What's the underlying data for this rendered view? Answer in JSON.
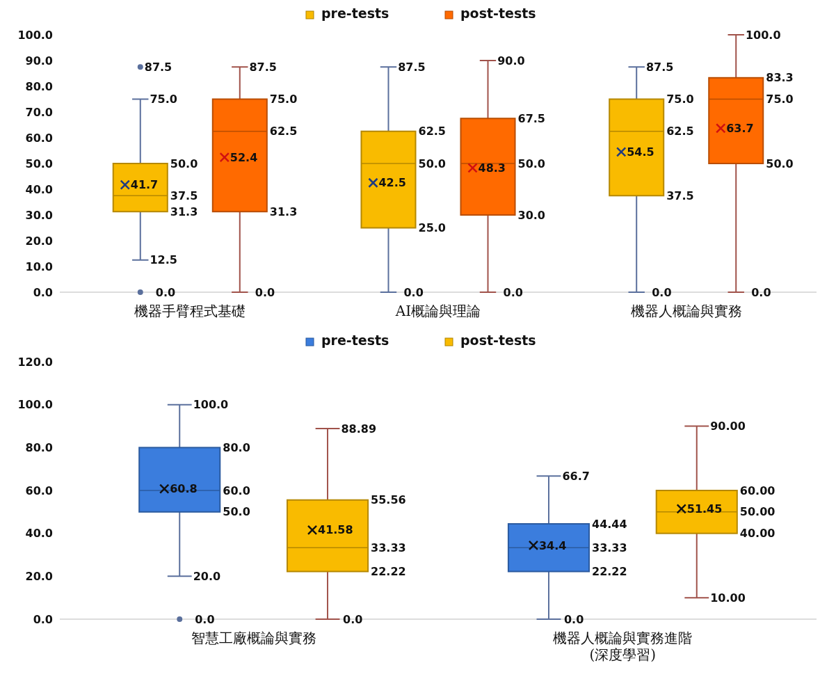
{
  "chart_data": [
    {
      "type": "box",
      "categories": [
        "機器手臂程式基礎",
        "AI概論與理論",
        "機器人概論與實務"
      ],
      "ylim": [
        0,
        100
      ],
      "yticks": [
        {
          "value": 0,
          "label": "0.0"
        },
        {
          "value": 10,
          "label": "10.0"
        },
        {
          "value": 20,
          "label": "20.0"
        },
        {
          "value": 30,
          "label": "30.0"
        },
        {
          "value": 40,
          "label": "40.0"
        },
        {
          "value": 50,
          "label": "50.0"
        },
        {
          "value": 60,
          "label": "60.0"
        },
        {
          "value": 70,
          "label": "70.0"
        },
        {
          "value": 80,
          "label": "80.0"
        },
        {
          "value": 90,
          "label": "90.0"
        },
        {
          "value": 100,
          "label": "100.0"
        }
      ],
      "legend": "top",
      "marker": "cross",
      "grid": false,
      "series": [
        {
          "name": "pre-tests",
          "color": "#f9bb00",
          "boxes": [
            {
              "low": 12.5,
              "q1": 31.3,
              "median": 37.5,
              "q3": 50,
              "high": 75,
              "mean": 41.7,
              "outliers": [
                87.5,
                0
              ]
            },
            {
              "low": 0,
              "q1": 25,
              "median": 50,
              "q3": 62.5,
              "high": 87.5,
              "mean": 42.5
            },
            {
              "low": 0,
              "q1": 37.5,
              "median": 62.5,
              "q3": 75,
              "high": 87.5,
              "mean": 54.5
            }
          ],
          "value_labels": [
            {
              "low": "12.5",
              "q1": "31.3",
              "median": "37.5",
              "q3": "50.0",
              "high": "75.0",
              "mean": "41.7",
              "outliers": [
                "87.5",
                "0.0"
              ]
            },
            {
              "low": "0.0",
              "q1": "25.0",
              "median": "50.0",
              "q3": "62.5",
              "high": "87.5",
              "mean": "42.5"
            },
            {
              "low": "0.0",
              "q1": "37.5",
              "median": "62.5",
              "q3": "75.0",
              "high": "87.5",
              "mean": "54.5"
            }
          ]
        },
        {
          "name": "post-tests",
          "color": "#ff6a00",
          "boxes": [
            {
              "low": 0,
              "q1": 31.3,
              "median": 62.5,
              "q3": 75,
              "high": 87.5,
              "mean": 52.4
            },
            {
              "low": 0,
              "q1": 30,
              "median": 50,
              "q3": 67.5,
              "high": 90,
              "mean": 48.3
            },
            {
              "low": 0,
              "q1": 50,
              "median": 75,
              "q3": 83.3,
              "high": 100,
              "mean": 63.7
            }
          ],
          "value_labels": [
            {
              "low": "0.0",
              "q1": "31.3",
              "median": "62.5",
              "q3": "75.0",
              "high": "87.5",
              "mean": "52.4"
            },
            {
              "low": "0.0",
              "q1": "30.0",
              "median": "50.0",
              "q3": "67.5",
              "high": "90.0",
              "mean": "48.3"
            },
            {
              "low": "0.0",
              "q1": "50.0",
              "median": "75.0",
              "q3": "83.3",
              "high": "100.0",
              "mean": "63.7"
            }
          ]
        }
      ]
    },
    {
      "type": "box",
      "categories": [
        "智慧工廠概論與實務",
        "機器人概論與實務進階\n(深度學習)"
      ],
      "ylim": [
        0,
        120
      ],
      "yticks": [
        {
          "value": 0,
          "label": "0.0"
        },
        {
          "value": 20,
          "label": "20.0"
        },
        {
          "value": 40,
          "label": "40.0"
        },
        {
          "value": 60,
          "label": "60.0"
        },
        {
          "value": 80,
          "label": "80.0"
        },
        {
          "value": 100,
          "label": "100.0"
        },
        {
          "value": 120,
          "label": "120.0"
        }
      ],
      "legend": "top",
      "marker": "cross",
      "grid": false,
      "series": [
        {
          "name": "pre-tests",
          "color": "#3b7ddd",
          "boxes": [
            {
              "low": 20,
              "q1": 50,
              "median": 60,
              "q3": 80,
              "high": 100,
              "mean": 60.8,
              "outliers": [
                0
              ]
            },
            {
              "low": 0,
              "q1": 22.22,
              "median": 33.33,
              "q3": 44.44,
              "high": 66.7,
              "mean": 34.4
            }
          ],
          "value_labels": [
            {
              "low": "20.0",
              "q1": "50.0",
              "median": "60.0",
              "q3": "80.0",
              "high": "100.0",
              "mean": "60.8",
              "outliers": [
                "0.0"
              ]
            },
            {
              "low": "0.0",
              "q1": "22.22",
              "median": "33.33",
              "q3": "44.44",
              "high": "66.7",
              "mean": "34.4"
            }
          ]
        },
        {
          "name": "post-tests",
          "color": "#f9bb00",
          "boxes": [
            {
              "low": 0,
              "q1": 22.22,
              "median": 33.33,
              "q3": 55.56,
              "high": 88.89,
              "mean": 41.58
            },
            {
              "low": 10,
              "q1": 40,
              "median": 50,
              "q3": 60,
              "high": 90,
              "mean": 51.45
            }
          ],
          "value_labels": [
            {
              "low": "0.0",
              "q1": "22.22",
              "median": "33.33",
              "q3": "55.56",
              "high": "88.89",
              "mean": "41.58"
            },
            {
              "low": "10.00",
              "q1": "40.00",
              "median": "50.00",
              "q3": "60.00",
              "high": "90.00",
              "mean": "51.45"
            }
          ]
        }
      ]
    }
  ]
}
